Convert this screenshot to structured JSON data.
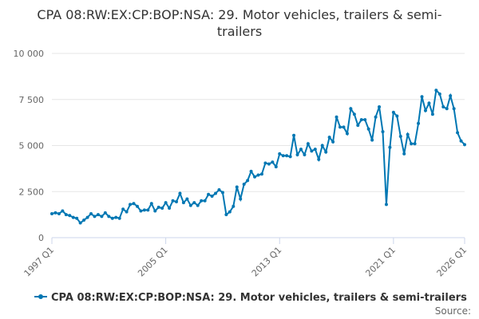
{
  "chart_data": {
    "type": "line",
    "title": "CPA 08:RW:EX:CP:BOP:NSA: 29. Motor vehicles, trailers & semi-trailers",
    "categories": [
      "1997 Q1",
      null,
      null,
      null,
      null,
      null,
      null,
      null,
      null,
      null,
      null,
      null,
      null,
      null,
      null,
      null,
      null,
      null,
      null,
      null,
      null,
      null,
      null,
      null,
      null,
      null,
      null,
      null,
      null,
      null,
      null,
      null,
      "2005 Q1",
      null,
      null,
      null,
      null,
      null,
      null,
      null,
      null,
      null,
      null,
      null,
      null,
      null,
      null,
      null,
      null,
      null,
      null,
      null,
      null,
      null,
      null,
      null,
      null,
      null,
      null,
      null,
      null,
      null,
      null,
      null,
      "2013 Q1",
      null,
      null,
      null,
      null,
      null,
      null,
      null,
      null,
      null,
      null,
      null,
      null,
      null,
      null,
      null,
      null,
      null,
      null,
      null,
      null,
      null,
      null,
      null,
      null,
      null,
      null,
      null,
      null,
      null,
      null,
      null,
      "2021 Q1",
      null,
      null,
      null,
      null,
      null,
      null,
      null,
      null,
      null,
      null,
      null,
      null,
      null,
      null,
      null,
      null,
      null,
      null,
      null,
      "2026 Q1"
    ],
    "series": [
      {
        "name": "CPA 08:RW:EX:CP:BOP:NSA: 29. Motor vehicles, trailers & semi-trailers",
        "color": "#0077b3",
        "values": [
          1300,
          1350,
          1300,
          1450,
          1250,
          1200,
          1100,
          1050,
          800,
          950,
          1100,
          1300,
          1150,
          1250,
          1150,
          1350,
          1150,
          1050,
          1100,
          1050,
          1550,
          1400,
          1800,
          1850,
          1700,
          1450,
          1500,
          1500,
          1850,
          1450,
          1650,
          1600,
          1900,
          1600,
          2000,
          1950,
          2400,
          1900,
          2100,
          1750,
          1900,
          1750,
          2000,
          2000,
          2350,
          2250,
          2400,
          2600,
          2450,
          1250,
          1400,
          1700,
          2750,
          2100,
          2900,
          3100,
          3600,
          3300,
          3400,
          3450,
          4050,
          4000,
          4100,
          3850,
          4550,
          4450,
          4450,
          4400,
          5550,
          4500,
          4800,
          4500,
          5100,
          4700,
          4800,
          4250,
          5000,
          4650,
          5450,
          5200,
          6550,
          6000,
          6000,
          5650,
          7000,
          6700,
          6100,
          6400,
          6400,
          5900,
          5300,
          6550,
          7100,
          5750,
          1800,
          4900,
          6800,
          6600,
          5500,
          4550,
          5600,
          5100,
          5100,
          6200,
          7650,
          6900,
          7300,
          6700,
          8000,
          7800,
          7100,
          7000,
          7700,
          7000,
          5700,
          5250,
          5050
        ]
      }
    ],
    "ylim": [
      0,
      10000
    ],
    "yticks": [
      0,
      {
        "value": 2500,
        "label": "2 500"
      },
      {
        "value": 5000,
        "label": "5 000"
      },
      {
        "value": 7500,
        "label": "7 500"
      },
      {
        "value": 10000,
        "label": "10 000"
      }
    ],
    "grid": true,
    "source": "Source:"
  }
}
